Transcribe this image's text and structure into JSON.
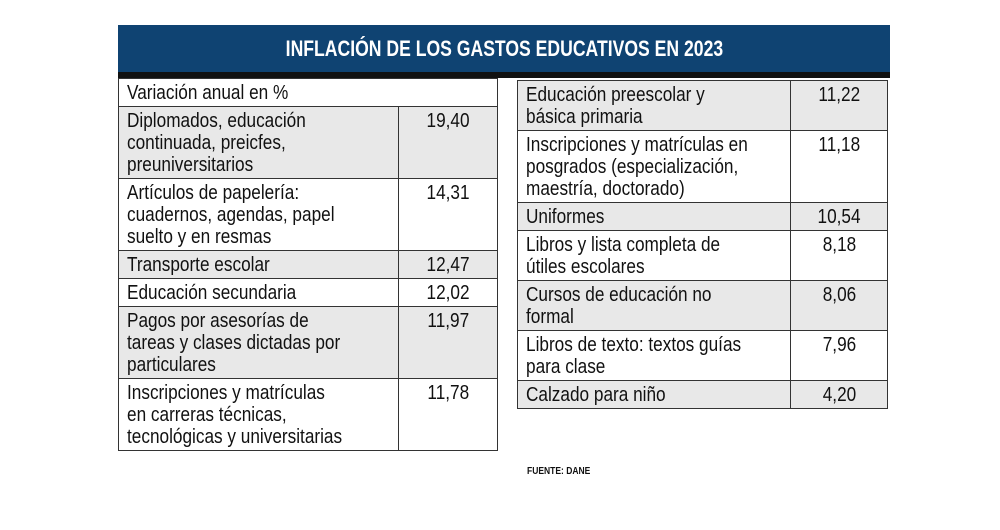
{
  "title": "INFLACIÓN DE LOS GASTOS EDUCATIVOS EN 2023",
  "subtitle": "Variación anual en %",
  "source": "FUENTE: DANE",
  "colors": {
    "banner": "#0f4372",
    "shade": "#e8e8e8"
  },
  "chart_data": {
    "type": "table",
    "title": "INFLACIÓN DE LOS GASTOS EDUCATIVOS EN 2023",
    "unit": "Variación anual en %",
    "left": [
      {
        "label": "Diplomados, educación\ncontinuada, preicfes,\npreuniversitarios",
        "value": "19,40"
      },
      {
        "label": "Artículos de papelería:\ncuadernos, agendas, papel\nsuelto y en resmas",
        "value": "14,31"
      },
      {
        "label": "Transporte escolar",
        "value": "12,47"
      },
      {
        "label": "Educación secundaria",
        "value": "12,02"
      },
      {
        "label": "Pagos por asesorías de\ntareas y clases dictadas por\nparticulares",
        "value": "11,97"
      },
      {
        "label": "Inscripciones y matrículas\nen carreras técnicas,\ntecnológicas y universitarias",
        "value": "11,78"
      }
    ],
    "right": [
      {
        "label": "Educación preescolar y\nbásica primaria",
        "value": "11,22"
      },
      {
        "label": "Inscripciones y matrículas en\nposgrados (especialización,\nmaestría, doctorado)",
        "value": "11,18"
      },
      {
        "label": "Uniformes",
        "value": "10,54"
      },
      {
        "label": "Libros y lista completa de\nútiles escolares",
        "value": "8,18"
      },
      {
        "label": "Cursos de educación no\nformal",
        "value": "8,06"
      },
      {
        "label": "Libros de texto: textos guías\npara clase",
        "value": "7,96"
      },
      {
        "label": "Calzado para niño",
        "value": "4,20"
      }
    ]
  }
}
